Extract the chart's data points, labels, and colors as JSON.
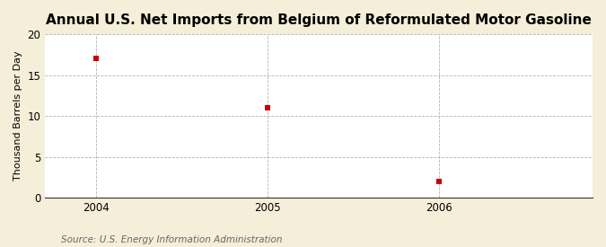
{
  "title": "Annual U.S. Net Imports from Belgium of Reformulated Motor Gasoline",
  "ylabel": "Thousand Barrels per Day",
  "source": "Source: U.S. Energy Information Administration",
  "x_values": [
    2004,
    2005,
    2006
  ],
  "y_values": [
    17,
    11,
    2
  ],
  "ylim": [
    0,
    20
  ],
  "yticks": [
    0,
    5,
    10,
    15,
    20
  ],
  "xticks": [
    2004,
    2005,
    2006
  ],
  "xlim": [
    2003.7,
    2006.9
  ],
  "marker_color": "#cc0000",
  "marker_size": 4,
  "fig_bg_color": "#f5eed8",
  "plot_bg_color": "#ffffff",
  "grid_color": "#aaaaaa",
  "title_fontsize": 11,
  "label_fontsize": 8,
  "tick_fontsize": 8.5,
  "source_fontsize": 7.5
}
